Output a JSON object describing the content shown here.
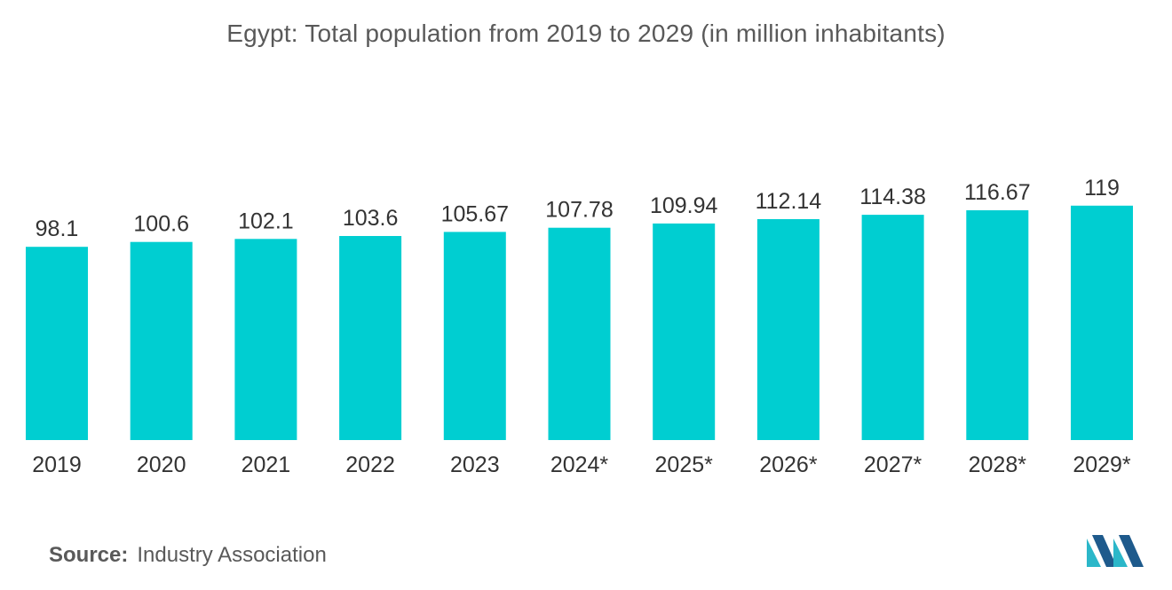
{
  "chart_data": {
    "type": "bar",
    "title": "Egypt: Total population from 2019 to 2029 (in million inhabitants)",
    "categories": [
      "2019",
      "2020",
      "2021",
      "2022",
      "2023",
      "2024*",
      "2025*",
      "2026*",
      "2027*",
      "2028*",
      "2029*"
    ],
    "values": [
      98.1,
      100.6,
      102.1,
      103.6,
      105.67,
      107.78,
      109.94,
      112.14,
      114.38,
      116.67,
      119
    ],
    "value_labels": [
      "98.1",
      "100.6",
      "102.1",
      "103.6",
      "105.67",
      "107.78",
      "109.94",
      "112.14",
      "114.38",
      "116.67",
      "119"
    ],
    "xlabel": "",
    "ylabel": "",
    "ylim": [
      0,
      119
    ],
    "grid": false,
    "legend": "none",
    "bar_color": "#00CED1"
  },
  "footer": {
    "source_key": "Source:",
    "source_value": "Industry Association"
  },
  "logo": {
    "icon": "mordor-intelligence-logo-icon",
    "color_dark": "#1E5A8C",
    "color_light": "#2BB7C9"
  }
}
